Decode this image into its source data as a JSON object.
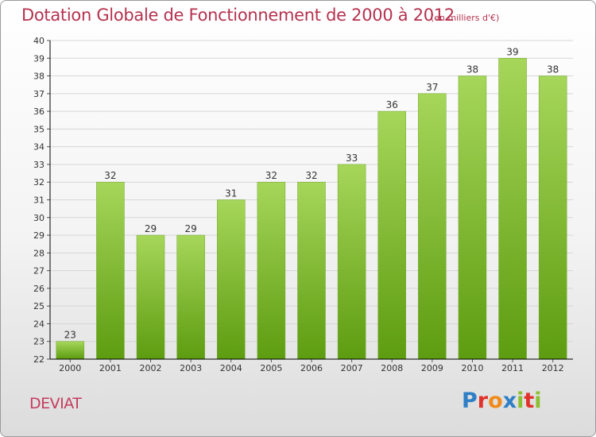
{
  "header": {
    "title": "Dotation Globale de Fonctionnement de 2000 à 2012",
    "unit": "(en milliers d'€)"
  },
  "footer": {
    "commune": "DEVIAT",
    "logo_text": "Proxiti",
    "logo_colors": [
      "#2f7fc6",
      "#e2312b",
      "#f08a1c",
      "#2f7fc6",
      "#8cbf2e",
      "#e2312b",
      "#8cbf2e"
    ]
  },
  "colors": {
    "bar_top": "#a6d65a",
    "bar_bottom": "#5d9c10",
    "axis": "#000000",
    "grid": "#d6d6d6",
    "title": "#b5324f"
  },
  "chart_data": {
    "type": "bar",
    "title": "Dotation Globale de Fonctionnement de 2000 à 2012",
    "subtitle": "(en milliers d'€)",
    "categories": [
      "2000",
      "2001",
      "2002",
      "2003",
      "2004",
      "2005",
      "2006",
      "2007",
      "2008",
      "2009",
      "2010",
      "2011",
      "2012"
    ],
    "values": [
      23,
      32,
      29,
      29,
      31,
      32,
      32,
      33,
      36,
      37,
      38,
      39,
      38
    ],
    "ylim": [
      22,
      40
    ],
    "yticks": [
      22,
      23,
      24,
      25,
      26,
      27,
      28,
      29,
      30,
      31,
      32,
      33,
      34,
      35,
      36,
      37,
      38,
      39,
      40
    ],
    "grid": true,
    "legend": "none"
  }
}
